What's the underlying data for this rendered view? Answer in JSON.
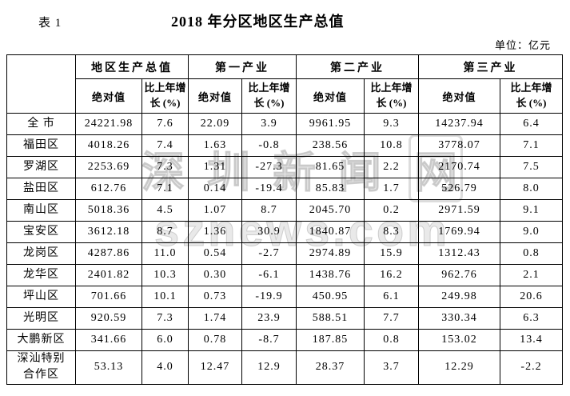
{
  "page": {
    "table_label": "表 1",
    "title": "2018 年分区地区生产总值",
    "unit_note": "单位：亿元"
  },
  "watermark": {
    "text_cn": "深圳新闻",
    "logo_char": "网",
    "text_en": "sznews.com"
  },
  "table": {
    "groups": [
      "地区生产总值",
      "第一产业",
      "第二产业",
      "第三产业"
    ],
    "sub_abs": "绝对值",
    "sub_growth": "比上年增\n长 (%)",
    "rows": [
      {
        "name": "全 市",
        "values": [
          "24221.98",
          "7.6",
          "22.09",
          "3.9",
          "9961.95",
          "9.3",
          "14237.94",
          "6.4"
        ]
      },
      {
        "name": "福田区",
        "values": [
          "4018.26",
          "7.4",
          "1.63",
          "-0.8",
          "238.56",
          "10.8",
          "3778.07",
          "7.1"
        ]
      },
      {
        "name": "罗湖区",
        "values": [
          "2253.69",
          "7.3",
          "1.31",
          "-27.3",
          "81.65",
          "2.2",
          "2170.74",
          "7.5"
        ]
      },
      {
        "name": "盐田区",
        "values": [
          "612.76",
          "7.1",
          "0.14",
          "-19.4",
          "85.83",
          "1.7",
          "526.79",
          "8.0"
        ]
      },
      {
        "name": "南山区",
        "values": [
          "5018.36",
          "4.5",
          "1.07",
          "8.7",
          "2045.70",
          "0.2",
          "2971.59",
          "9.1"
        ]
      },
      {
        "name": "宝安区",
        "values": [
          "3612.18",
          "8.7",
          "1.36",
          "30.9",
          "1840.87",
          "8.3",
          "1769.94",
          "9.0"
        ]
      },
      {
        "name": "龙岗区",
        "values": [
          "4287.86",
          "11.0",
          "0.54",
          "-2.7",
          "2974.89",
          "15.9",
          "1312.43",
          "0.8"
        ]
      },
      {
        "name": "龙华区",
        "values": [
          "2401.82",
          "10.3",
          "0.30",
          "-6.1",
          "1438.76",
          "16.2",
          "962.76",
          "2.1"
        ]
      },
      {
        "name": "坪山区",
        "values": [
          "701.66",
          "10.1",
          "0.73",
          "-19.9",
          "450.95",
          "6.1",
          "249.98",
          "20.6"
        ]
      },
      {
        "name": "光明区",
        "values": [
          "920.59",
          "7.3",
          "1.74",
          "23.9",
          "588.51",
          "7.7",
          "330.34",
          "6.3"
        ]
      },
      {
        "name": "大鹏新区",
        "values": [
          "341.66",
          "6.0",
          "0.78",
          "-8.7",
          "187.85",
          "0.8",
          "153.02",
          "13.4"
        ]
      },
      {
        "name": "深汕特别\n合作区",
        "values": [
          "53.13",
          "4.0",
          "12.47",
          "12.9",
          "28.37",
          "3.7",
          "12.29",
          "-2.2"
        ]
      }
    ]
  },
  "chart_data": {
    "type": "table",
    "title": "2018 年分区地区生产总值",
    "unit": "亿元",
    "columns": [
      "地区",
      "地区生产总值-绝对值",
      "地区生产总值-比上年增长(%)",
      "第一产业-绝对值",
      "第一产业-比上年增长(%)",
      "第二产业-绝对值",
      "第二产业-比上年增长(%)",
      "第三产业-绝对值",
      "第三产业-比上年增长(%)"
    ],
    "rows": [
      [
        "全市",
        24221.98,
        7.6,
        22.09,
        3.9,
        9961.95,
        9.3,
        14237.94,
        6.4
      ],
      [
        "福田区",
        4018.26,
        7.4,
        1.63,
        -0.8,
        238.56,
        10.8,
        3778.07,
        7.1
      ],
      [
        "罗湖区",
        2253.69,
        7.3,
        1.31,
        -27.3,
        81.65,
        2.2,
        2170.74,
        7.5
      ],
      [
        "盐田区",
        612.76,
        7.1,
        0.14,
        -19.4,
        85.83,
        1.7,
        526.79,
        8.0
      ],
      [
        "南山区",
        5018.36,
        4.5,
        1.07,
        8.7,
        2045.7,
        0.2,
        2971.59,
        9.1
      ],
      [
        "宝安区",
        3612.18,
        8.7,
        1.36,
        30.9,
        1840.87,
        8.3,
        1769.94,
        9.0
      ],
      [
        "龙岗区",
        4287.86,
        11.0,
        0.54,
        -2.7,
        2974.89,
        15.9,
        1312.43,
        0.8
      ],
      [
        "龙华区",
        2401.82,
        10.3,
        0.3,
        -6.1,
        1438.76,
        16.2,
        962.76,
        2.1
      ],
      [
        "坪山区",
        701.66,
        10.1,
        0.73,
        -19.9,
        450.95,
        6.1,
        249.98,
        20.6
      ],
      [
        "光明区",
        920.59,
        7.3,
        1.74,
        23.9,
        588.51,
        7.7,
        330.34,
        6.3
      ],
      [
        "大鹏新区",
        341.66,
        6.0,
        0.78,
        -8.7,
        187.85,
        0.8,
        153.02,
        13.4
      ],
      [
        "深汕特别合作区",
        53.13,
        4.0,
        12.47,
        12.9,
        28.37,
        3.7,
        12.29,
        -2.2
      ]
    ]
  }
}
